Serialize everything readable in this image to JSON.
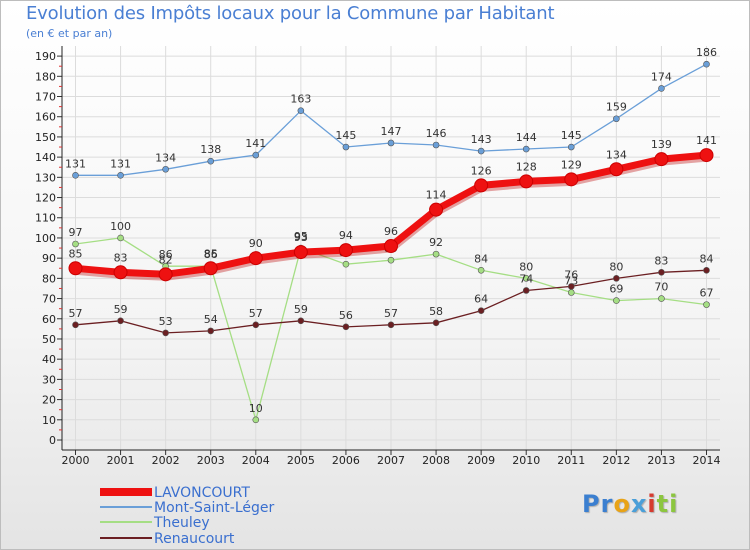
{
  "header": {
    "title": "Evolution des Impôts locaux pour la Commune par Habitant",
    "subtitle": "(en € et par an)"
  },
  "brand": {
    "logo_parts": [
      "Pr",
      "o",
      "x",
      "i",
      "ti"
    ],
    "logo_colors": [
      "#3b7fd0",
      "#e8a317",
      "#4a9fd8",
      "#d63b2f",
      "#8cc63f"
    ]
  },
  "chart_data": {
    "type": "line",
    "title": "Evolution des Impôts locaux pour la Commune par Habitant",
    "subtitle": "(en € et par an)",
    "xlabel": "",
    "ylabel": "",
    "ylim": [
      0,
      195
    ],
    "yticks": [
      0,
      10,
      20,
      30,
      40,
      50,
      60,
      70,
      80,
      90,
      100,
      110,
      120,
      130,
      140,
      150,
      160,
      170,
      180,
      190
    ],
    "x": [
      "2000",
      "2001",
      "2002",
      "2003",
      "2004",
      "2005",
      "2006",
      "2007",
      "2008",
      "2009",
      "2010",
      "2011",
      "2012",
      "2013",
      "2014"
    ],
    "grid": true,
    "legend_position": "bottom-left",
    "series": [
      {
        "name": "LAVONCOURT",
        "color": "#ee1111",
        "emphasis": true,
        "values": [
          85,
          83,
          82,
          85,
          90,
          93,
          94,
          96,
          114,
          126,
          128,
          129,
          134,
          139,
          141
        ]
      },
      {
        "name": "Mont-Saint-Léger",
        "color": "#6a9fd8",
        "emphasis": false,
        "values": [
          131,
          131,
          134,
          138,
          141,
          163,
          145,
          147,
          146,
          143,
          144,
          145,
          159,
          174,
          186
        ]
      },
      {
        "name": "Theuley",
        "color": "#a5de84",
        "emphasis": false,
        "values": [
          97,
          100,
          86,
          86,
          10,
          95,
          87,
          89,
          92,
          84,
          80,
          73,
          69,
          70,
          67
        ]
      },
      {
        "name": "Renaucourt",
        "color": "#6b1f22",
        "emphasis": false,
        "values": [
          57,
          59,
          53,
          54,
          57,
          59,
          56,
          57,
          58,
          64,
          74,
          76,
          80,
          83,
          84
        ]
      }
    ]
  }
}
